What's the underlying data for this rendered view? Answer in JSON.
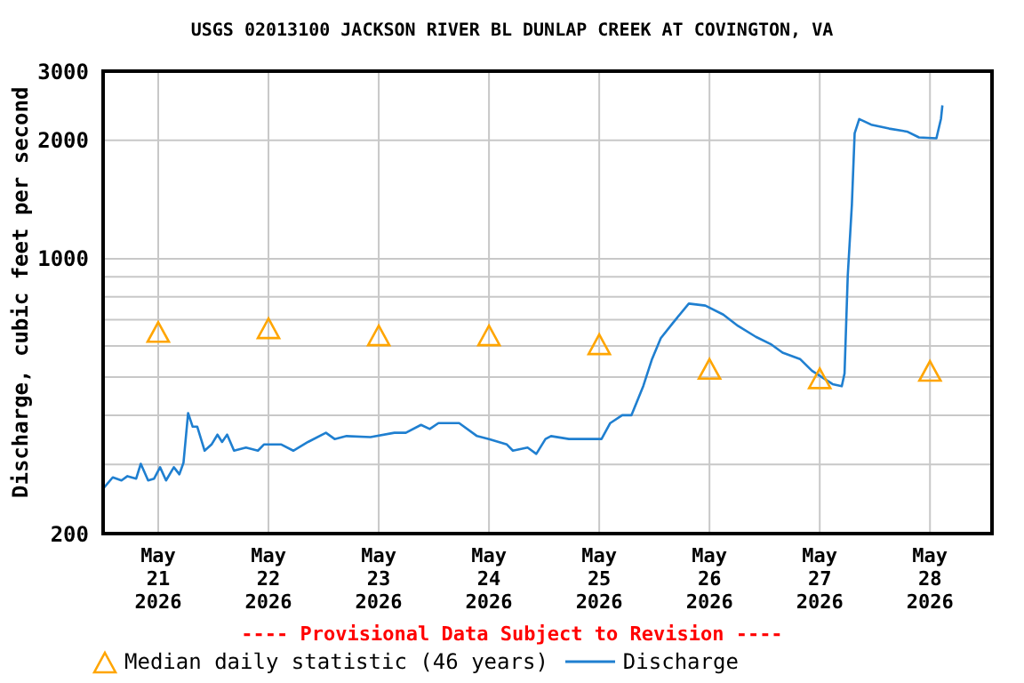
{
  "chart_data": {
    "type": "line",
    "title": "USGS 02013100 JACKSON RIVER BL DUNLAP CREEK AT COVINGTON, VA",
    "ylabel": "Discharge, cubic feet per second",
    "annotations": [
      "---- Provisional Data Subject to Revision ----"
    ],
    "log": "y",
    "grid": true,
    "legend": "bottom",
    "xlim": [
      "2026-05-20T12:00",
      "2026-05-28T13:30"
    ],
    "xticks": [
      {
        "value": "2026-05-21",
        "label": "May 21 2026"
      },
      {
        "value": "2026-05-22",
        "label": "May 22 2026"
      },
      {
        "value": "2026-05-23",
        "label": "May 23 2026"
      },
      {
        "value": "2026-05-24",
        "label": "May 24 2026"
      },
      {
        "value": "2026-05-25",
        "label": "May 25 2026"
      },
      {
        "value": "2026-05-26",
        "label": "May 26 2026"
      },
      {
        "value": "2026-05-27",
        "label": "May 27 2026"
      },
      {
        "value": "2026-05-28",
        "label": "May 28 2026"
      }
    ],
    "ylim": [
      200,
      3000
    ],
    "yticks": [
      200,
      {
        "value": 300,
        "label": null
      },
      {
        "value": 400,
        "label": null
      },
      {
        "value": 500,
        "label": null
      },
      {
        "value": 600,
        "label": null
      },
      {
        "value": 700,
        "label": null
      },
      {
        "value": 800,
        "label": null
      },
      {
        "value": 900,
        "label": null
      },
      1000,
      2000,
      3000
    ],
    "series": [
      {
        "name": "Median daily statistic (46 years)",
        "type": "scatter",
        "marker": "triangle",
        "color": "#ffa500",
        "x": [
          "2026-05-21",
          "2026-05-22",
          "2026-05-23",
          "2026-05-24",
          "2026-05-25",
          "2026-05-26",
          "2026-05-27",
          "2026-05-28"
        ],
        "values": [
          648,
          662,
          635,
          635,
          603,
          522,
          494,
          516
        ]
      },
      {
        "name": "Discharge",
        "type": "line",
        "marker": "none",
        "line_style": "solid",
        "color": "#1f7fd0",
        "x": [
          "2026-05-20T12:06",
          "2026-05-20T14:06",
          "2026-05-20T16:00",
          "2026-05-20T17:18",
          "2026-05-20T19:12",
          "2026-05-20T20:12",
          "2026-05-20T21:48",
          "2026-05-20T23:06",
          "2026-05-21T00:24",
          "2026-05-21T01:42",
          "2026-05-21T03:24",
          "2026-05-21T04:36",
          "2026-05-21T05:30",
          "2026-05-21T06:30",
          "2026-05-21T07:30",
          "2026-05-21T08:30",
          "2026-05-21T10:06",
          "2026-05-21T11:36",
          "2026-05-21T12:54",
          "2026-05-21T13:54",
          "2026-05-21T15:00",
          "2026-05-21T16:30",
          "2026-05-21T19:06",
          "2026-05-21T21:42",
          "2026-05-21T23:00",
          "2026-05-22T02:48",
          "2026-05-22T05:24",
          "2026-05-22T08:36",
          "2026-05-22T12:30",
          "2026-05-22T14:24",
          "2026-05-22T17:00",
          "2026-05-22T22:12",
          "2026-05-23T03:24",
          "2026-05-23T05:54",
          "2026-05-23T09:12",
          "2026-05-23T11:06",
          "2026-05-23T13:00",
          "2026-05-23T17:30",
          "2026-05-23T21:24",
          "2026-05-24T00:00",
          "2026-05-24T03:54",
          "2026-05-24T05:12",
          "2026-05-24T08:24",
          "2026-05-24T10:18",
          "2026-05-24T12:18",
          "2026-05-24T13:30",
          "2026-05-24T17:24",
          "2026-05-25T00:30",
          "2026-05-25T02:24",
          "2026-05-25T05:00",
          "2026-05-25T07:00",
          "2026-05-25T09:36",
          "2026-05-25T11:30",
          "2026-05-25T13:24",
          "2026-05-25T16:00",
          "2026-05-25T19:30",
          "2026-05-25T23:06",
          "2026-05-26T03:00",
          "2026-05-26T06:12",
          "2026-05-26T10:06",
          "2026-05-26T13:18",
          "2026-05-26T15:54",
          "2026-05-26T19:42",
          "2026-05-26T22:18",
          "2026-05-27T02:48",
          "2026-05-27T04:48",
          "2026-05-27T05:24",
          "2026-05-27T06:06",
          "2026-05-27T07:00",
          "2026-05-27T07:36",
          "2026-05-27T08:36",
          "2026-05-27T11:12",
          "2026-05-27T15:06",
          "2026-05-27T19:00",
          "2026-05-27T21:36",
          "2026-05-28T01:24",
          "2026-05-28T02:24",
          "2026-05-28T02:42"
        ],
        "values": [
          261,
          278,
          273,
          280,
          276,
          301,
          273,
          276,
          295,
          273,
          295,
          283,
          303,
          405,
          374,
          374,
          325,
          337,
          357,
          342,
          357,
          325,
          331,
          325,
          337,
          337,
          325,
          342,
          361,
          348,
          354,
          352,
          361,
          361,
          378,
          369,
          382,
          382,
          354,
          348,
          337,
          325,
          331,
          319,
          348,
          354,
          348,
          348,
          382,
          400,
          400,
          475,
          556,
          628,
          686,
          769,
          760,
          721,
          675,
          633,
          607,
          577,
          556,
          519,
          480,
          474,
          511,
          906,
          1374,
          2085,
          2266,
          2193,
          2143,
          2106,
          2035,
          2025,
          2271,
          2455
        ]
      }
    ]
  }
}
